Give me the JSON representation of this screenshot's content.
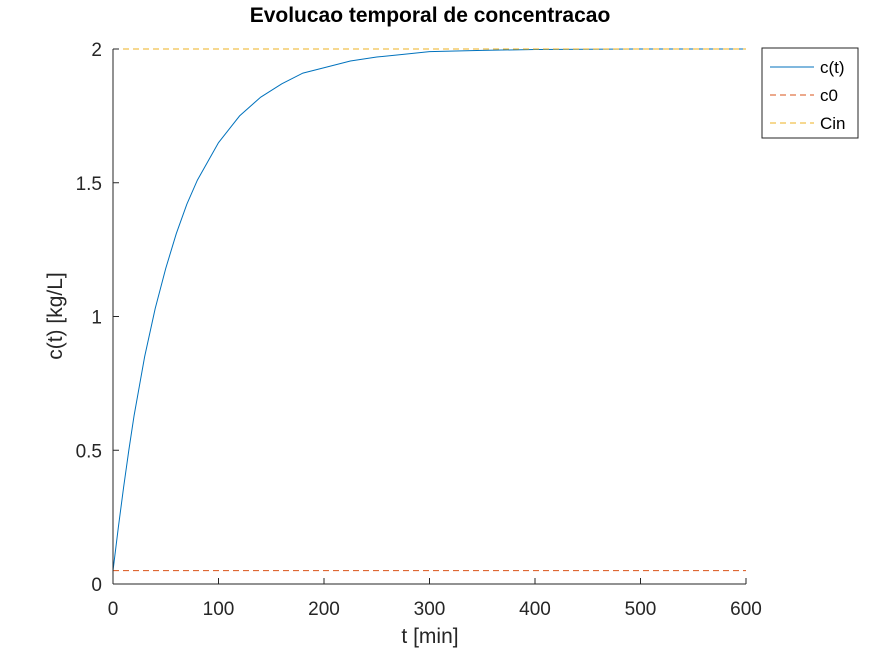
{
  "chart_data": {
    "type": "line",
    "title": "Evolucao temporal de concentracao",
    "xlabel": "t [min]",
    "ylabel": "c(t) [kg/L]",
    "xlim": [
      0,
      600
    ],
    "ylim": [
      0,
      2
    ],
    "xticks": [
      0,
      100,
      200,
      300,
      400,
      500,
      600
    ],
    "yticks": [
      0,
      0.5,
      1,
      1.5,
      2
    ],
    "xtick_labels": [
      "0",
      "100",
      "200",
      "300",
      "400",
      "500",
      "600"
    ],
    "ytick_labels": [
      "0",
      "0.5",
      "1",
      "1.5",
      "2"
    ],
    "grid": false,
    "legend_position": "top-right-outside",
    "series": [
      {
        "name": "c(t)",
        "style": "solid",
        "color": "#0072bd",
        "x": [
          0,
          5,
          10,
          15,
          20,
          25,
          30,
          40,
          50,
          60,
          70,
          80,
          90,
          100,
          120,
          140,
          160,
          180,
          200,
          225,
          250,
          275,
          300,
          350,
          400,
          450,
          500,
          550,
          600
        ],
        "y": [
          0.05,
          0.21,
          0.36,
          0.5,
          0.63,
          0.74,
          0.85,
          1.03,
          1.18,
          1.31,
          1.42,
          1.51,
          1.58,
          1.65,
          1.75,
          1.82,
          1.87,
          1.91,
          1.93,
          1.955,
          1.97,
          1.98,
          1.99,
          1.995,
          1.998,
          1.999,
          2.0,
          2.0,
          2.0
        ]
      },
      {
        "name": "c0",
        "style": "dashed",
        "color": "#d95319",
        "x": [
          0,
          600
        ],
        "y": [
          0.05,
          0.05
        ]
      },
      {
        "name": "Cin",
        "style": "dashed",
        "color": "#edb120",
        "x": [
          0,
          600
        ],
        "y": [
          2,
          2
        ]
      }
    ]
  }
}
